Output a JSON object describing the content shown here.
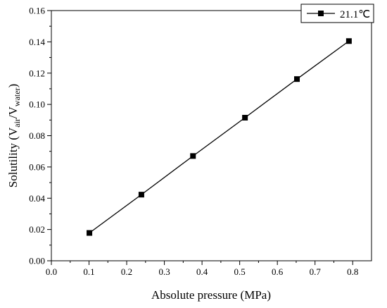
{
  "chart_data": {
    "type": "line",
    "xlabel": "Absolute pressure (MPa)",
    "ylabel": {
      "prefix": "Solutility (V",
      "sub1": "air",
      "mid": "/V",
      "sub2": "water",
      "suffix": ")"
    },
    "xlim": [
      0.0,
      0.85
    ],
    "ylim": [
      0.0,
      0.16
    ],
    "xticks": [
      "0.0",
      "0.1",
      "0.2",
      "0.3",
      "0.4",
      "0.5",
      "0.6",
      "0.7",
      "0.8"
    ],
    "yticks": [
      "0.00",
      "0.02",
      "0.04",
      "0.06",
      "0.08",
      "0.10",
      "0.12",
      "0.14",
      "0.16"
    ],
    "legend_position": "top-right",
    "grid": false,
    "series": [
      {
        "name": "21.1℃",
        "color": "#000000",
        "marker": "square",
        "x": [
          0.101,
          0.239,
          0.376,
          0.514,
          0.652,
          0.79
        ],
        "y": [
          0.0178,
          0.0423,
          0.067,
          0.0915,
          0.1162,
          0.1405
        ]
      }
    ]
  }
}
